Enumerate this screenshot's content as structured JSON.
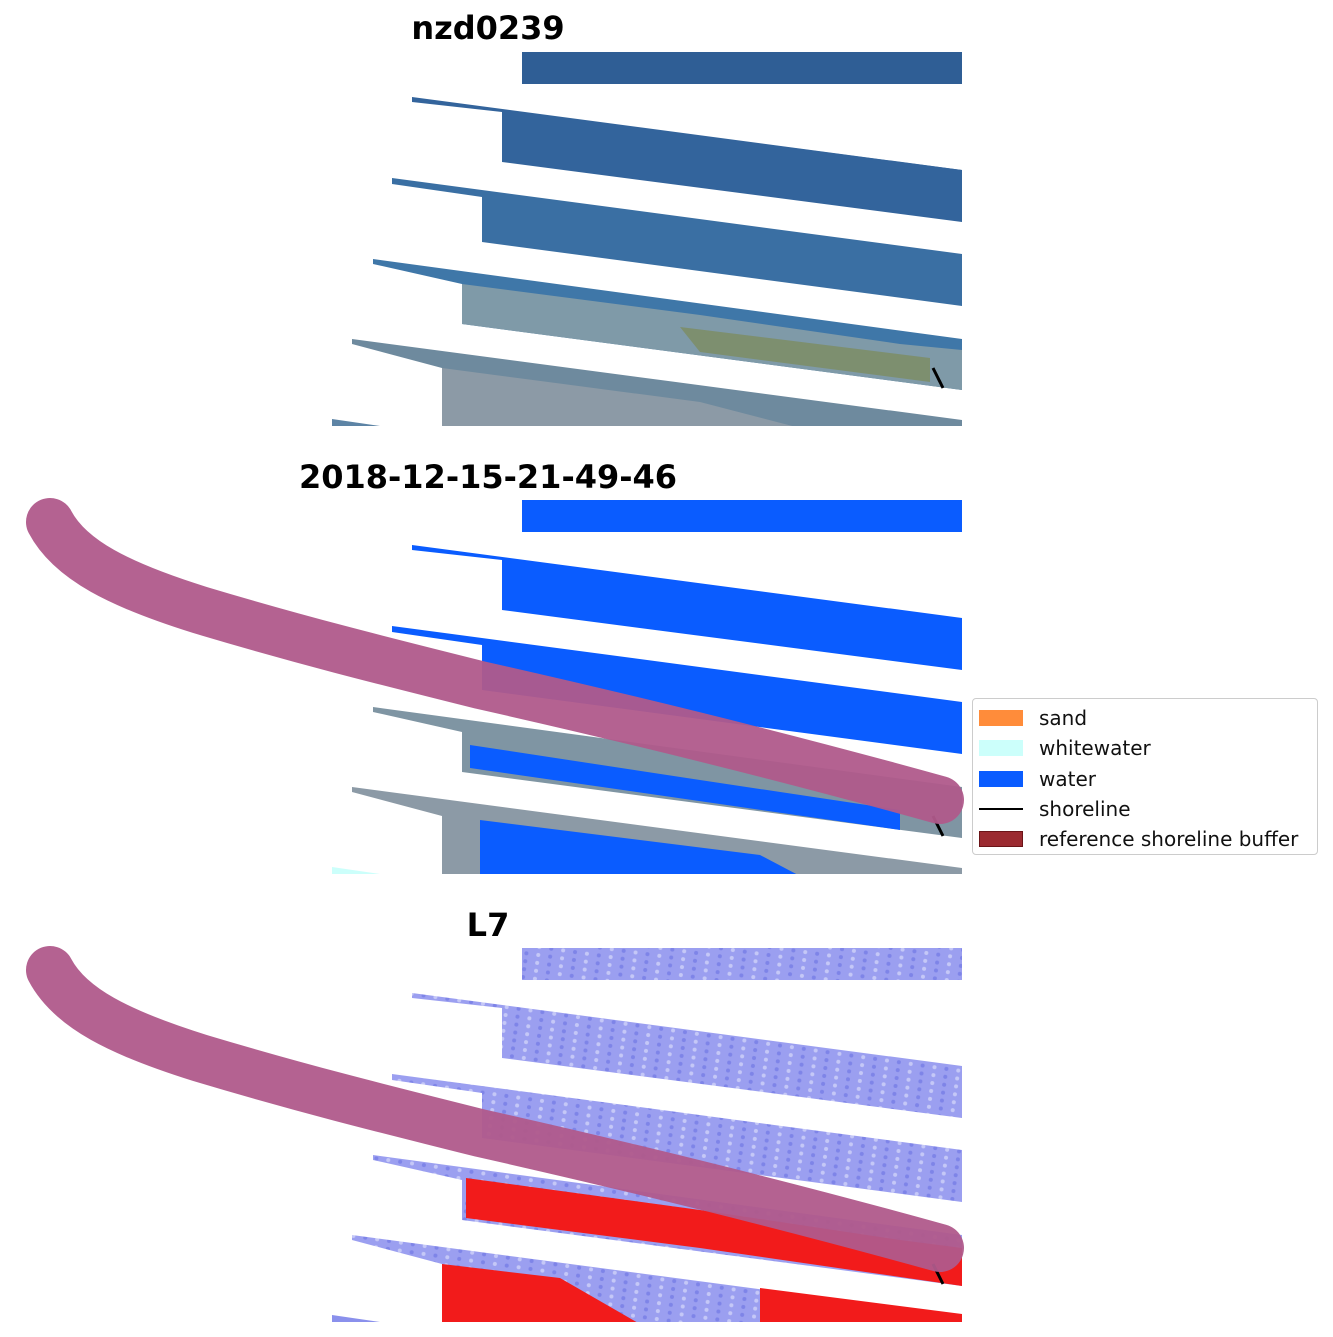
{
  "titles": {
    "panel1": "nzd0239",
    "panel2": "2018-12-15-21-49-46",
    "panel3": "L7"
  },
  "legend": {
    "items": [
      {
        "label": "sand",
        "color": "#ff8c3a",
        "kind": "patch"
      },
      {
        "label": "whitewater",
        "color": "#ccfffb",
        "kind": "patch"
      },
      {
        "label": "water",
        "color": "#0a5cff",
        "kind": "patch"
      },
      {
        "label": "shoreline",
        "color": "#000000",
        "kind": "line"
      },
      {
        "label": "reference shoreline buffer",
        "color": "#9b2a30",
        "kind": "patch-edged"
      }
    ]
  },
  "colors": {
    "rgb_water": "#2f5e95",
    "rgb_water_light": "#3d77a6",
    "land_gray": "#8c9aa6",
    "land_green": "#7d8f6f",
    "class_water": "#0a5cff",
    "buffer_overlay": "#b05a8b",
    "index_blue": "#9b9ff0",
    "index_red": "#f21b1b"
  }
}
